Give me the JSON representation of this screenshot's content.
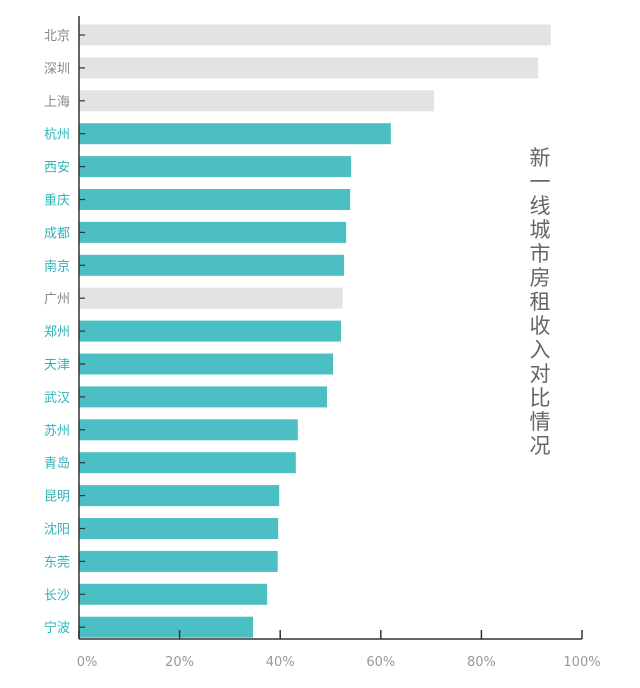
{
  "chart_data": {
    "type": "bar",
    "orientation": "horizontal",
    "title": "新一线城市房租收入对比情况",
    "categories": [
      "北京",
      "深圳",
      "上海",
      "杭州",
      "西安",
      "重庆",
      "成都",
      "南京",
      "广州",
      "郑州",
      "天津",
      "武汉",
      "苏州",
      "青岛",
      "昆明",
      "沈阳",
      "东莞",
      "长沙",
      "宁波"
    ],
    "values": [
      93.8,
      91.3,
      70.6,
      62.0,
      54.1,
      53.9,
      53.1,
      52.7,
      52.4,
      52.1,
      50.5,
      49.3,
      43.5,
      43.1,
      39.8,
      39.6,
      39.5,
      37.4,
      34.6
    ],
    "highlight": [
      false,
      false,
      false,
      true,
      true,
      true,
      true,
      true,
      false,
      true,
      true,
      true,
      true,
      true,
      true,
      true,
      true,
      true,
      true
    ],
    "xlim": [
      0,
      100
    ],
    "xticks": [
      "0%",
      "20%",
      "40%",
      "60%",
      "80%",
      "100%"
    ],
    "colors": {
      "highlight": "#4bbfc3",
      "other": "#e3e3e3",
      "highlight_label": "#2fb3b8",
      "other_label": "#888888"
    },
    "grid": false,
    "legend": "none"
  }
}
